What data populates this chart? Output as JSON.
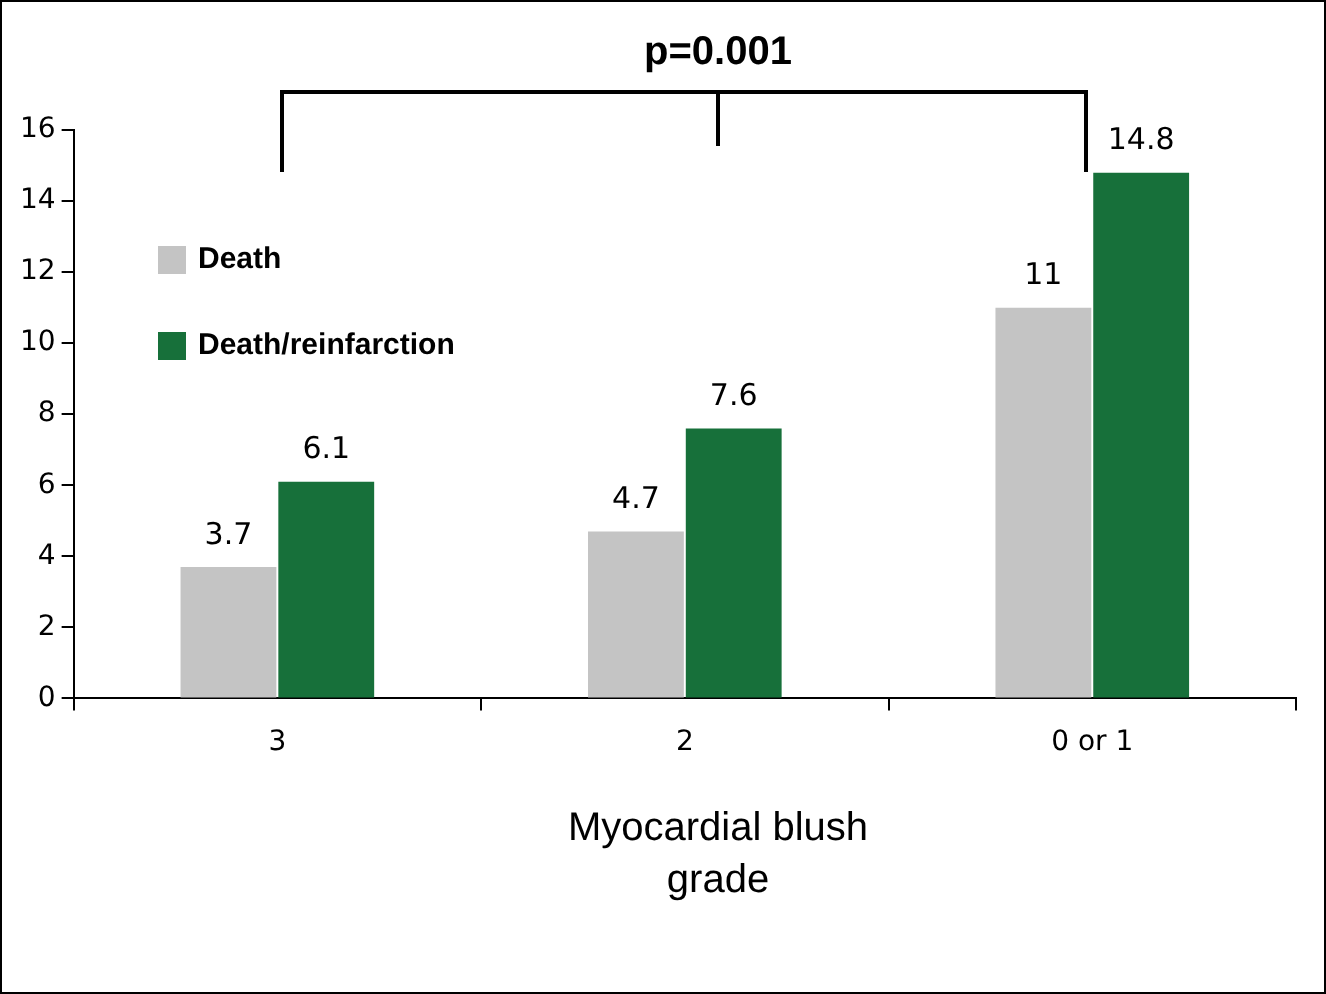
{
  "chart_data": {
    "type": "bar",
    "xlabel": "Myocardial blush grade",
    "categories": [
      "3",
      "2",
      "0 or 1"
    ],
    "series": [
      {
        "name": "Death",
        "color": "#c4c4c4",
        "values": [
          3.7,
          4.7,
          11
        ]
      },
      {
        "name": "Death/reinfarction",
        "color": "#17703a",
        "values": [
          6.1,
          7.6,
          14.8
        ]
      }
    ],
    "ylim": [
      0,
      16
    ],
    "yticks": [
      0,
      2,
      4,
      6,
      8,
      10,
      12,
      14,
      16
    ],
    "grid": false,
    "legend": "top left",
    "data_labels": true,
    "annotations": [
      "p=0.001"
    ]
  }
}
